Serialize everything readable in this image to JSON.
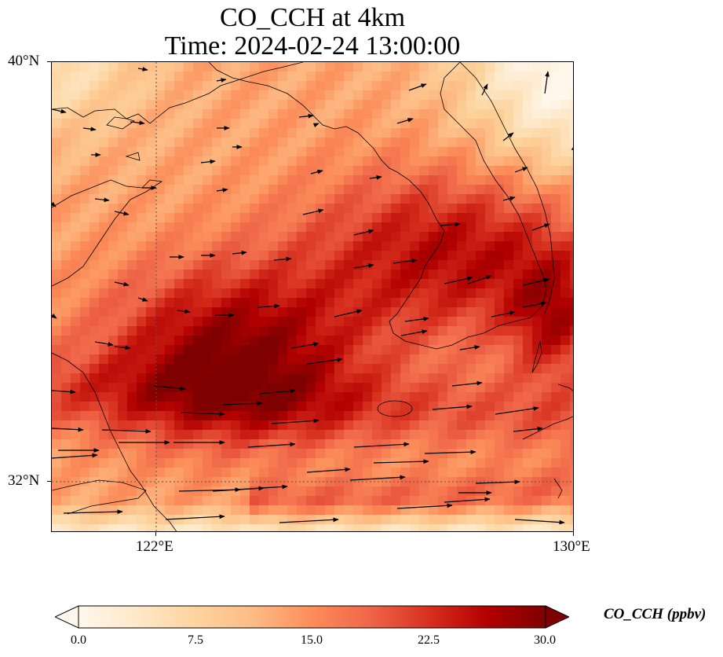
{
  "title": {
    "line1": "CO_CCH at 4km",
    "line2": "Time: 2024-02-24 13:00:00"
  },
  "map": {
    "lon_range": [
      118,
      130
    ],
    "lat_range": [
      30.8,
      40
    ],
    "lat_ticks": [
      {
        "value": 40,
        "label": "40°N"
      },
      {
        "value": 32,
        "label": "32°N"
      }
    ],
    "lon_ticks": [
      {
        "value": 122,
        "label": "122°E"
      },
      {
        "value": 130,
        "label": "130°E"
      }
    ],
    "gridlines": "dotted at 122°E and 32°N",
    "field": "CO_CCH concentration (ppbv)",
    "field_description": "high values (~26-30) in a band from Yellow Sea SW across Korea; lower values near coasts and NE corner",
    "vectors": "wind arrows, mostly westerly/eastward"
  },
  "colorbar": {
    "label": "CO_CCH (ppbv)",
    "min": 0.0,
    "max": 30.0,
    "ticks": [
      "0.0",
      "7.5",
      "15.0",
      "22.5",
      "30.0"
    ],
    "colormap": "OrRd",
    "extend": "both"
  },
  "colors": {
    "low": "#fff7ec",
    "mid": "#fc8d59",
    "high": "#7f0000"
  }
}
